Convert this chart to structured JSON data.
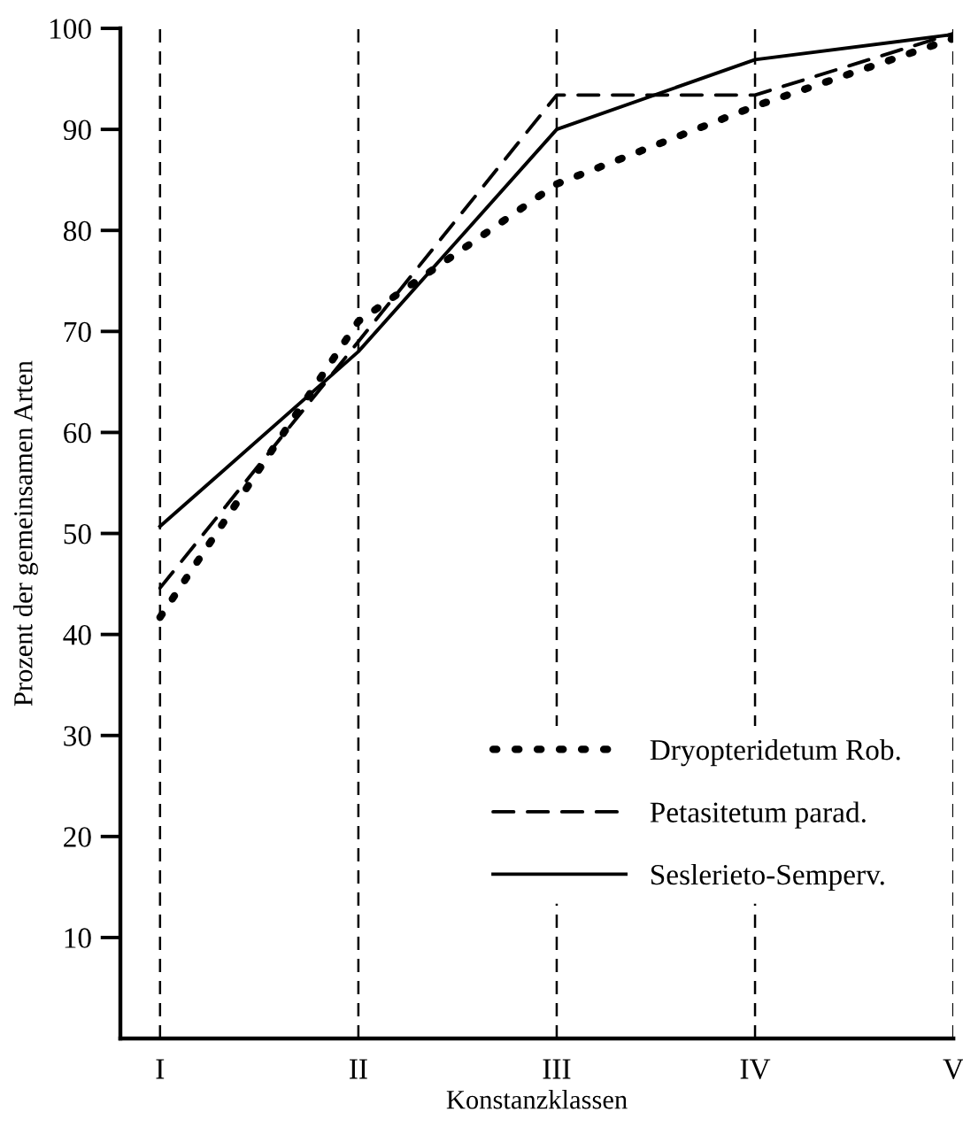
{
  "chart_data": {
    "type": "line",
    "xlabel": "Konstanzklassen",
    "ylabel": "Prozent der gemeinsamen Arten",
    "categories": [
      "I",
      "II",
      "III",
      "IV",
      "V"
    ],
    "series": [
      {
        "name": "Dryopteridetum Rob.",
        "color": "#000000",
        "line_style": "dotted",
        "values": [
          41.7,
          71,
          84.6,
          92.3,
          99
        ]
      },
      {
        "name": "Petasitetum parad.",
        "color": "#000000",
        "line_style": "dashed",
        "values": [
          44.6,
          69,
          93.4,
          93.4,
          99.5
        ]
      },
      {
        "name": "Seslerieto-Semperv.",
        "color": "#000000",
        "line_style": "solid",
        "values": [
          50.7,
          68,
          90,
          96.9,
          99.4
        ]
      }
    ],
    "ylim": [
      0,
      100
    ],
    "yticks": [
      10,
      20,
      30,
      40,
      50,
      60,
      70,
      80,
      90,
      100
    ],
    "grid": "x",
    "legend": "bottom right",
    "marker": "none"
  }
}
